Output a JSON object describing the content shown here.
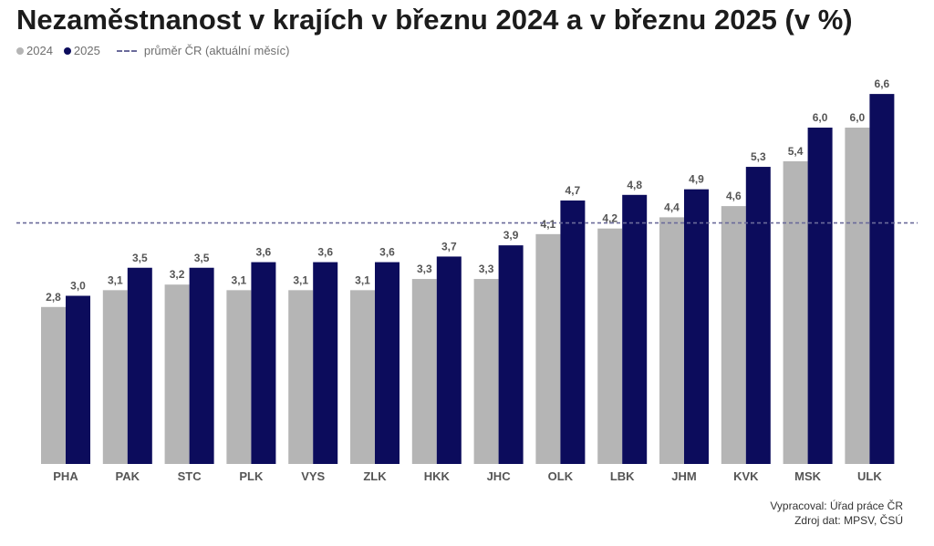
{
  "title": "Nezaměstnanost v krajích v březnu 2024 a v březnu 2025 (v %)",
  "legend": {
    "series_2024": "2024",
    "series_2025": "2025",
    "avg_line": "průměr ČR (aktuální měsíc)"
  },
  "colors": {
    "series_2024": "#b5b5b5",
    "series_2025": "#0c0c5c",
    "avg_line": "#6b6b9a"
  },
  "source": {
    "line1": "Vypracoval: Úřad práce ČR",
    "line2": "Zdroj dat: MPSV, ČSÚ"
  },
  "chart_data": {
    "type": "bar",
    "categories": [
      "PHA",
      "PAK",
      "STC",
      "PLK",
      "VYS",
      "ZLK",
      "HKK",
      "JHC",
      "OLK",
      "LBK",
      "JHM",
      "KVK",
      "MSK",
      "ULK"
    ],
    "series": [
      {
        "name": "2024",
        "values": [
          2.8,
          3.1,
          3.2,
          3.1,
          3.1,
          3.1,
          3.3,
          3.3,
          4.1,
          4.2,
          4.4,
          4.6,
          5.4,
          6.0
        ]
      },
      {
        "name": "2025",
        "values": [
          3.0,
          3.5,
          3.5,
          3.6,
          3.6,
          3.6,
          3.7,
          3.9,
          4.7,
          4.8,
          4.9,
          5.3,
          6.0,
          6.6
        ]
      }
    ],
    "data_labels": {
      "2024": [
        "2,8",
        "3,1",
        "3,2",
        "3,1",
        "3,1",
        "3,1",
        "3,3",
        "3,3",
        "4,1",
        "4,2",
        "4,4",
        "4,6",
        "5,4",
        "6,0"
      ],
      "2025": [
        "3,0",
        "3,5",
        "3,5",
        "3,6",
        "3,6",
        "3,6",
        "3,7",
        "3,9",
        "4,7",
        "4,8",
        "4,9",
        "5,3",
        "6,0",
        "6,6"
      ]
    },
    "reference_line": {
      "name": "průměr ČR (aktuální měsíc)",
      "value": 4.3
    },
    "ylim": [
      0,
      6.6
    ],
    "grid": false,
    "legend_position": "top-left"
  }
}
